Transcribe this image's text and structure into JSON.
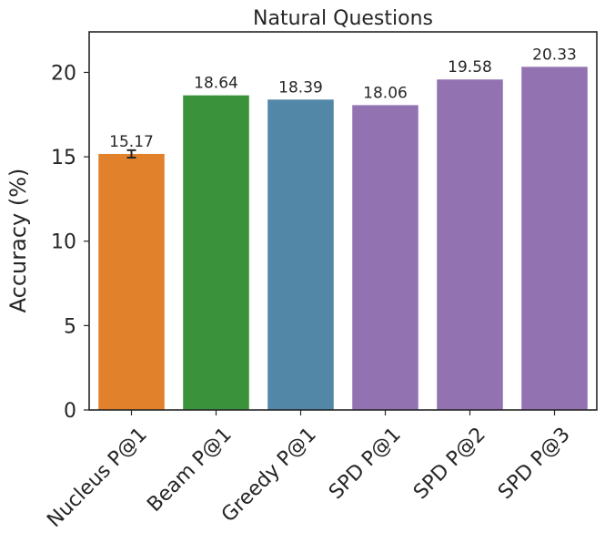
{
  "chart_data": {
    "type": "bar",
    "title": "Natural Questions",
    "ylabel": "Accuracy (%)",
    "xlabel": "",
    "ylim": [
      0,
      22.4
    ],
    "yticks": [
      0,
      5,
      10,
      15,
      20
    ],
    "grid": false,
    "categories": [
      "Nucleus P@1",
      "Beam P@1",
      "Greedy P@1",
      "SPD P@1",
      "SPD P@2",
      "SPD P@3"
    ],
    "values": [
      15.17,
      18.64,
      18.39,
      18.06,
      19.58,
      20.33
    ],
    "value_labels": [
      "15.17",
      "18.64",
      "18.39",
      "18.06",
      "19.58",
      "20.33"
    ],
    "error": [
      0.22,
      null,
      null,
      null,
      null,
      null
    ],
    "colors": [
      "#E1812C",
      "#3A923A",
      "#5387A8",
      "#9372B2",
      "#9372B2",
      "#9372B2"
    ]
  }
}
